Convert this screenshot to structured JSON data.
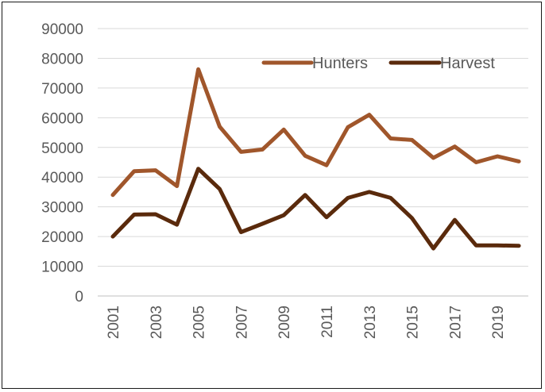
{
  "chart_data": {
    "type": "line",
    "title": "",
    "xlabel": "",
    "ylabel": "",
    "x": [
      2001,
      2002,
      2003,
      2004,
      2005,
      2006,
      2007,
      2008,
      2009,
      2010,
      2011,
      2012,
      2013,
      2014,
      2015,
      2016,
      2017,
      2018,
      2019,
      2020
    ],
    "x_tick_labels": [
      "2001",
      "2003",
      "2005",
      "2007",
      "2009",
      "2011",
      "2013",
      "2015",
      "2017",
      "2019"
    ],
    "y_tick_labels": [
      "0",
      "10000",
      "20000",
      "30000",
      "40000",
      "50000",
      "60000",
      "70000",
      "80000",
      "90000"
    ],
    "ylim": [
      0,
      90000
    ],
    "grid": "horizontal",
    "legend_position": "top-right",
    "series": [
      {
        "name": "Hunters",
        "color": "#A0562B",
        "values": [
          34000,
          42000,
          42300,
          37000,
          76300,
          57000,
          48500,
          49300,
          56000,
          47200,
          44000,
          56800,
          61000,
          53000,
          52500,
          46500,
          50300,
          45000,
          47000,
          45300
        ]
      },
      {
        "name": "Harvest",
        "color": "#5A2A0C",
        "values": [
          20000,
          27400,
          27500,
          24000,
          42800,
          36000,
          21500,
          24300,
          27200,
          34000,
          26500,
          33000,
          35000,
          33000,
          26200,
          16000,
          25600,
          17000,
          17000,
          16900
        ]
      }
    ]
  }
}
